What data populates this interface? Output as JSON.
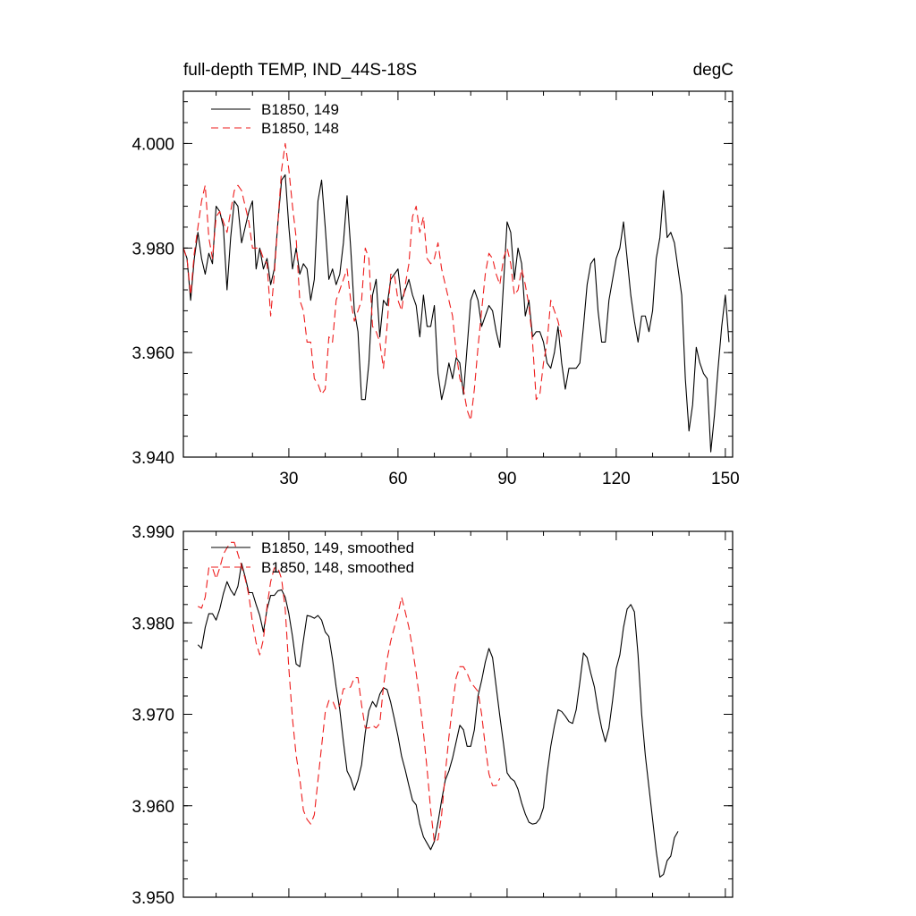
{
  "chart_data": [
    {
      "type": "line",
      "title": "full-depth TEMP, IND_44S-18S",
      "units": "degC",
      "xlim": [
        1,
        152
      ],
      "ylim": [
        3.94,
        4.01
      ],
      "xticks": [
        30,
        60,
        90,
        120,
        150
      ],
      "xtick_labels": [
        "30",
        "60",
        "90",
        "120",
        "150"
      ],
      "yticks": [
        3.94,
        3.96,
        3.98,
        4.0
      ],
      "ytick_labels": [
        "3.940",
        "3.960",
        "3.980",
        "4.000"
      ],
      "legend_position": "top-left",
      "series": [
        {
          "name": "B1850, 149",
          "color": "#000000",
          "style": "solid",
          "x_start": 1,
          "values": [
            3.98,
            3.978,
            3.97,
            3.978,
            3.983,
            3.978,
            3.975,
            3.979,
            3.977,
            3.988,
            3.987,
            3.984,
            3.972,
            3.982,
            3.989,
            3.988,
            3.981,
            3.984,
            3.987,
            3.989,
            3.976,
            3.98,
            3.976,
            3.978,
            3.973,
            3.976,
            3.985,
            3.993,
            3.994,
            3.984,
            3.976,
            3.98,
            3.975,
            3.977,
            3.976,
            3.97,
            3.974,
            3.989,
            3.993,
            3.984,
            3.974,
            3.976,
            3.973,
            3.975,
            3.981,
            3.99,
            3.98,
            3.968,
            3.964,
            3.951,
            3.951,
            3.958,
            3.971,
            3.974,
            3.963,
            3.97,
            3.969,
            3.974,
            3.975,
            3.976,
            3.97,
            3.972,
            3.974,
            3.971,
            3.969,
            3.963,
            3.971,
            3.965,
            3.965,
            3.969,
            3.956,
            3.951,
            3.954,
            3.958,
            3.955,
            3.959,
            3.958,
            3.952,
            3.961,
            3.97,
            3.972,
            3.97,
            3.965,
            3.967,
            3.969,
            3.968,
            3.964,
            3.961,
            3.973,
            3.985,
            3.983,
            3.974,
            3.98,
            3.977,
            3.967,
            3.97,
            3.963,
            3.964,
            3.964,
            3.962,
            3.958,
            3.957,
            3.96,
            3.965,
            3.958,
            3.953,
            3.957,
            3.957,
            3.957,
            3.958,
            3.965,
            3.973,
            3.977,
            3.978,
            3.968,
            3.962,
            3.962,
            3.97,
            3.974,
            3.978,
            3.98,
            3.985,
            3.978,
            3.971,
            3.966,
            3.962,
            3.967,
            3.967,
            3.964,
            3.968,
            3.978,
            3.982,
            3.991,
            3.982,
            3.983,
            3.981,
            3.976,
            3.971,
            3.955,
            3.945,
            3.95,
            3.961,
            3.958,
            3.956,
            3.955,
            3.941,
            3.948,
            3.957,
            3.965,
            3.971,
            3.962
          ]
        },
        {
          "name": "B1850, 148",
          "color": "#ee1c1c",
          "style": "dashed",
          "x_start": 1,
          "values": [
            3.98,
            3.978,
            3.971,
            3.979,
            3.984,
            3.989,
            3.992,
            3.982,
            3.978,
            3.986,
            3.987,
            3.985,
            3.983,
            3.987,
            3.991,
            3.992,
            3.991,
            3.988,
            3.985,
            3.98,
            3.98,
            3.98,
            3.978,
            3.977,
            3.967,
            3.975,
            3.985,
            3.995,
            4.0,
            3.995,
            3.988,
            3.982,
            3.97,
            3.968,
            3.962,
            3.962,
            3.955,
            3.954,
            3.952,
            3.953,
            3.963,
            3.962,
            3.97,
            3.972,
            3.974,
            3.976,
            3.97,
            3.966,
            3.968,
            3.97,
            3.98,
            3.978,
            3.965,
            3.964,
            3.962,
            3.957,
            3.965,
            3.975,
            3.975,
            3.97,
            3.968,
            3.973,
            3.977,
            3.986,
            3.988,
            3.983,
            3.986,
            3.978,
            3.977,
            3.978,
            3.981,
            3.976,
            3.973,
            3.97,
            3.967,
            3.96,
            3.955,
            3.953,
            3.949,
            3.947,
            3.953,
            3.961,
            3.968,
            3.975,
            3.979,
            3.978,
            3.975,
            3.973,
            3.978,
            3.98,
            3.977,
            3.971,
            3.972,
            3.976,
            3.973,
            3.969,
            3.962,
            3.951,
            3.952,
            3.958,
            3.962,
            3.97,
            3.968,
            3.966,
            3.963
          ]
        }
      ]
    },
    {
      "type": "line",
      "title": "",
      "xlim": [
        1,
        152
      ],
      "ylim": [
        3.95,
        3.99
      ],
      "xticks": [
        30,
        60,
        90,
        120,
        150
      ],
      "xtick_labels": [
        "",
        "",
        "",
        "",
        ""
      ],
      "yticks": [
        3.95,
        3.96,
        3.97,
        3.98,
        3.99
      ],
      "ytick_labels": [
        "3.950",
        "3.960",
        "3.970",
        "3.980",
        "3.990"
      ],
      "legend_position": "top-left",
      "series": [
        {
          "name": "B1850, 149, smoothed",
          "color": "#000000",
          "style": "solid",
          "x_start": 5,
          "values": [
            3.9776,
            3.9772,
            3.9795,
            3.981,
            3.981,
            3.9803,
            3.9815,
            3.9832,
            3.9845,
            3.9836,
            3.983,
            3.984,
            3.9865,
            3.985,
            3.9833,
            3.9833,
            3.982,
            3.9808,
            3.979,
            3.9815,
            3.983,
            3.983,
            3.9835,
            3.9836,
            3.9828,
            3.981,
            3.9785,
            3.9755,
            3.9752,
            3.9781,
            3.9808,
            3.9807,
            3.9805,
            3.9808,
            3.9803,
            3.979,
            3.9785,
            3.976,
            3.973,
            3.9705,
            3.967,
            3.9638,
            3.963,
            3.9617,
            3.9628,
            3.9645,
            3.968,
            3.9704,
            3.9714,
            3.9708,
            3.9722,
            3.9729,
            3.9727,
            3.9713,
            3.9695,
            3.9676,
            3.9654,
            3.9639,
            3.9622,
            3.9606,
            3.9601,
            3.958,
            3.9566,
            3.9559,
            3.9552,
            3.9561,
            3.9582,
            3.9606,
            3.9628,
            3.9638,
            3.9652,
            3.967,
            3.9688,
            3.9683,
            3.9665,
            3.9665,
            3.9683,
            3.972,
            3.9737,
            3.9757,
            3.9772,
            3.9762,
            3.973,
            3.9698,
            3.9668,
            3.9636,
            3.963,
            3.9627,
            3.9618,
            3.9603,
            3.9591,
            3.9582,
            3.958,
            3.9581,
            3.9586,
            3.9598,
            3.9635,
            3.9665,
            3.9687,
            3.9705,
            3.9703,
            3.9698,
            3.9692,
            3.969,
            3.9705,
            3.9735,
            3.9767,
            3.9762,
            3.9745,
            3.973,
            3.9705,
            3.9685,
            3.967,
            3.9685,
            3.9715,
            3.975,
            3.9765,
            3.9795,
            3.9815,
            3.982,
            3.9812,
            3.9765,
            3.97,
            3.9655,
            3.962,
            3.9585,
            3.955,
            3.9522,
            3.9525,
            3.954,
            3.9545,
            3.9565,
            3.9572
          ]
        },
        {
          "name": "B1850, 148, smoothed",
          "color": "#ee1c1c",
          "style": "dashed",
          "x_start": 5,
          "values": [
            3.9818,
            3.9816,
            3.9828,
            3.986,
            3.986,
            3.9848,
            3.986,
            3.9875,
            3.9882,
            3.9888,
            3.9888,
            3.9875,
            3.9862,
            3.9848,
            3.983,
            3.98,
            3.9778,
            3.9765,
            3.9782,
            3.9818,
            3.9845,
            3.986,
            3.986,
            3.9848,
            3.9815,
            3.975,
            3.9695,
            3.9655,
            3.963,
            3.9595,
            3.9585,
            3.958,
            3.959,
            3.9628,
            3.9665,
            3.9702,
            3.9715,
            3.9715,
            3.9705,
            3.971,
            3.9728,
            3.9728,
            3.973,
            3.974,
            3.974,
            3.971,
            3.9685,
            3.9685,
            3.9688,
            3.9685,
            3.969,
            3.973,
            3.976,
            3.978,
            3.9795,
            3.981,
            3.9828,
            3.9812,
            3.9795,
            3.9772,
            3.9745,
            3.9715,
            3.968,
            3.964,
            3.9595,
            3.956,
            3.9563,
            3.959,
            3.9635,
            3.9675,
            3.971,
            3.974,
            3.9752,
            3.9752,
            3.9745,
            3.9735,
            3.973,
            3.9725,
            3.97,
            3.9665,
            3.9635,
            3.9622,
            3.9622,
            3.963
          ]
        }
      ]
    }
  ]
}
